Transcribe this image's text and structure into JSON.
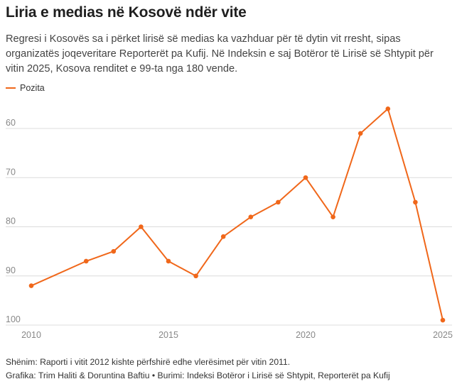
{
  "header": {
    "title": "Liria e medias në Kosovë ndër vite",
    "subtitle": "Regresi i Kosovës sa i përket lirisë së medias ka vazhduar për të dytin vit rresht, sipas organizatës joqeveritare Reporterët pa Kufij. Në Indeksin e saj Botëror të Lirisë së Shtypit për vitin 2025, Kosova renditet e 99-ta nga 180 vende."
  },
  "footer": {
    "note": "Shënim: Raporti i vitit 2012 kishte përfshirë edhe vlerësimet për vitin 2011.",
    "credits": "Grafika: Trim Haliti & Doruntina Baftiu • Burimi: Indeksi Botëror i Lirisë së Shtypit, Reporterët pa Kufij"
  },
  "colors": {
    "series": "#f0671a",
    "grid": "#dcdcdc",
    "axis_text": "#888888"
  },
  "chart_data": {
    "type": "line",
    "x": [
      2010,
      2012,
      2013,
      2014,
      2015,
      2016,
      2017,
      2018,
      2019,
      2020,
      2021,
      2022,
      2023,
      2024,
      2025
    ],
    "series": [
      {
        "name": "Pozita",
        "values": [
          92,
          87,
          85,
          80,
          87,
          90,
          82,
          78,
          75,
          70,
          78,
          61,
          56,
          75,
          99
        ]
      }
    ],
    "xticks": [
      "2010",
      "2015",
      "2020",
      "2025"
    ],
    "yticks": [
      "60",
      "70",
      "80",
      "90",
      "100"
    ],
    "ylim": [
      100,
      53
    ],
    "y_inverted": true,
    "xlim": [
      2010,
      2025
    ],
    "grid": true,
    "legend": "top-left"
  }
}
